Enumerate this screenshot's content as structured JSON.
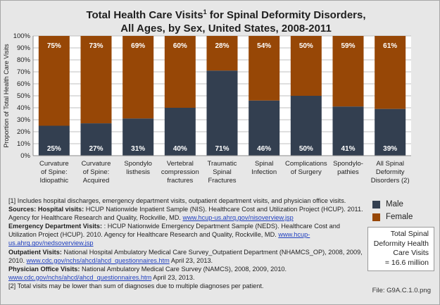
{
  "title": {
    "line1_prefix": "Total Health Care Visits",
    "line1_sup": "1",
    "line1_suffix": " for Spinal Deformity Disorders,",
    "line2": "All Ages, by Sex, United States, 2008-2011"
  },
  "colors": {
    "male": "#333f50",
    "female": "#974706"
  },
  "chart_data": {
    "type": "bar",
    "stacked": true,
    "normalized": true,
    "ylabel": "Proportion of Total Health Care Visits",
    "ylim": [
      0,
      100
    ],
    "yticks": [
      "0%",
      "10%",
      "20%",
      "30%",
      "40%",
      "50%",
      "60%",
      "70%",
      "80%",
      "90%",
      "100%"
    ],
    "grid": true,
    "categories": [
      [
        "Curvature",
        "of Spine:",
        "Idiopathic"
      ],
      [
        "Curvature",
        "of Spine:",
        "Acquired"
      ],
      [
        "Spondylo",
        "listhesis"
      ],
      [
        "Vertebral",
        "compression",
        "fractures"
      ],
      [
        "Traumatic",
        "Spinal",
        "Fractures"
      ],
      [
        "Spinal",
        "Infection"
      ],
      [
        "Complications",
        "of Surgery"
      ],
      [
        "Spondylo-",
        "pathies"
      ],
      [
        "All Spinal",
        "Deformity",
        "Disorders (2)"
      ]
    ],
    "series": [
      {
        "name": "Male",
        "values": [
          25,
          27,
          31,
          40,
          71,
          46,
          50,
          41,
          39
        ],
        "labels": [
          "25%",
          "27%",
          "31%",
          "40%",
          "71%",
          "46%",
          "50%",
          "41%",
          "39%"
        ]
      },
      {
        "name": "Female",
        "values": [
          75,
          73,
          69,
          60,
          28,
          54,
          50,
          59,
          61
        ],
        "labels": [
          "75%",
          "73%",
          "69%",
          "60%",
          "28%",
          "54%",
          "50%",
          "59%",
          "61%"
        ]
      }
    ]
  },
  "legend": {
    "male": "Male",
    "female": "Female"
  },
  "total_box": {
    "line1": "Total Spinal",
    "line2": "Deformity Health",
    "line3": "Care Visits",
    "line4": "= 16.6 million"
  },
  "notes": {
    "n1": "[1] Includes hospital discharges, emergency department visits, outpatient department visits, and physician office visits.",
    "hosp_head": "Sources: Hospital visits:",
    "hosp_text": " HCUP Nationwide Inpatient Sample (NIS). Healthcare Cost and Utilization Project (HCUP). 2011. Agency for Healthcare Research and Quality, Rockville, MD. ",
    "hosp_link": "www.hcup-us.ahrq.gov/nisoverview.jsp",
    "ed_head": "Emergency Department Visits:",
    "ed_text": " : HCUP Nationwide Emergency Department Sample (NEDS). Healthcare Cost and Utilization Project (HCUP). 2010. Agency for Healthcare Research and Quality, Rockville, MD. ",
    "ed_link": "www.hcup-us.ahrq.gov/nedsoverview.jsp",
    "op_head": "Outpatient Visits:",
    "op_text": " National Hospital Ambulatory Medical Care Survey_Outpatient Department (NHAMCS_OP), 2008, 2009, 2010. ",
    "op_link": "www.cdc.gov/nchs/ahcd/ahcd_questionnaires.htm",
    "op_date": " April 23, 2013.",
    "po_head": "Physician Office Visits:",
    "po_text": " National Ambulatory Medical Care Survey (NAMCS), 2008, 2009, 2010. ",
    "po_link": "www.cdc.gov/nchs/ahcd/ahcd_questionnaires.htm",
    "po_date": " April 23, 2013.",
    "n2": "[2] Total visits may be lower than sum of diagnoses due to multiple diagnoses per patient."
  },
  "file_label": "File: G9A.C.1.0.png"
}
